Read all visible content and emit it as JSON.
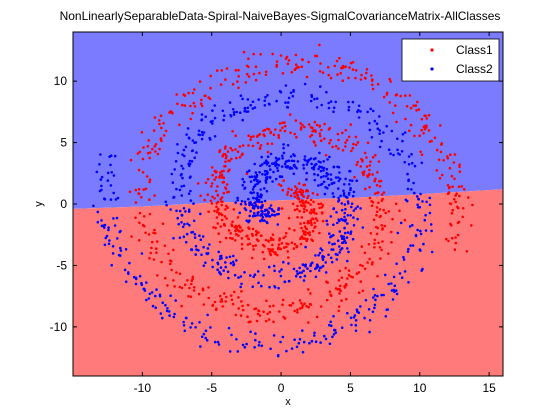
{
  "chart_data": {
    "type": "scatter",
    "title": "NonLinearlySeparableData-Spiral-NaiveBayes-SigmalCovarianceMatrix-AllClasses",
    "xlabel": "x",
    "ylabel": "y",
    "xlim": [
      -15,
      16
    ],
    "ylim": [
      -14,
      14
    ],
    "xticks": [
      -10,
      -5,
      0,
      5,
      10,
      15
    ],
    "yticks": [
      10,
      5,
      0,
      -5,
      -10
    ],
    "grid": false,
    "legend_position": "top-right",
    "background_regions": [
      {
        "name": "Class2 decision region",
        "color": "#7b7bff",
        "side": "above boundary"
      },
      {
        "name": "Class1 decision region",
        "color": "#ff7b7b",
        "side": "below boundary"
      }
    ],
    "decision_boundary": {
      "x": [
        -15,
        -10,
        -5,
        0,
        5,
        10,
        16
      ],
      "y": [
        -0.4,
        -0.2,
        0.1,
        0.3,
        0.5,
        0.8,
        1.2
      ]
    },
    "series": [
      {
        "name": "Class1",
        "color": "#ff0000",
        "marker": "dot",
        "spiral": {
          "angle_start": 2.2,
          "angle_end": 16.0,
          "radius_start": 1.2,
          "radius_per_radian": 0.85,
          "phase": 3.14159,
          "noise": 0.55,
          "count": 950
        }
      },
      {
        "name": "Class2",
        "color": "#0000ff",
        "marker": "dot",
        "spiral": {
          "angle_start": 2.2,
          "angle_end": 16.0,
          "radius_start": 1.2,
          "radius_per_radian": 0.85,
          "phase": 0,
          "noise": 0.55,
          "count": 950
        }
      }
    ]
  }
}
